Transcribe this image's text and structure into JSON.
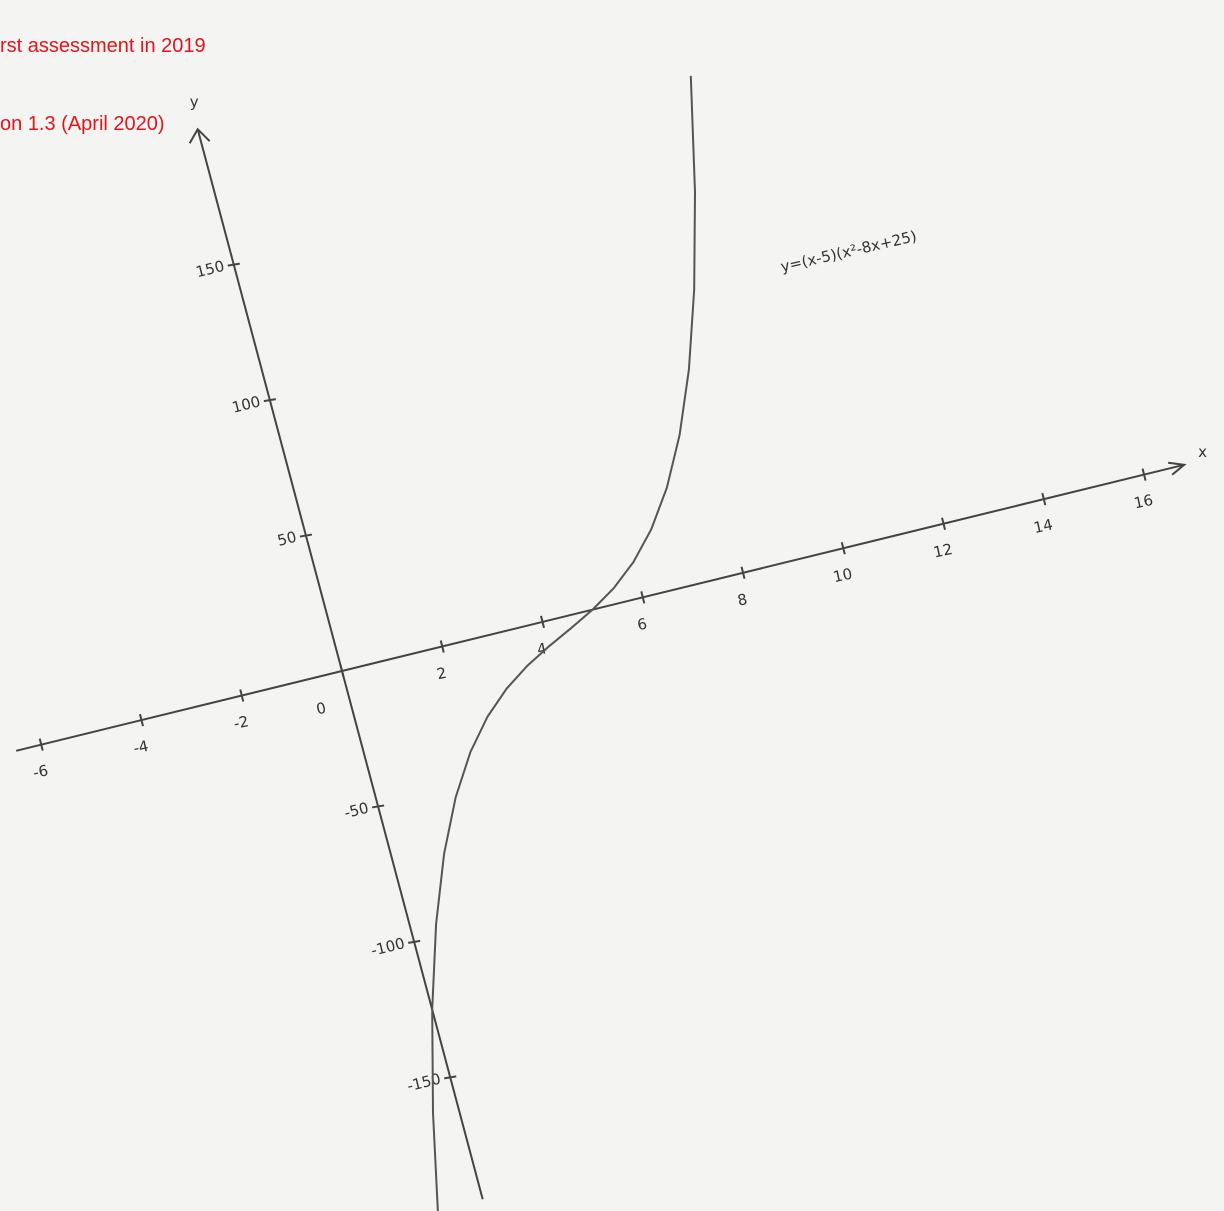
{
  "header": {
    "line1": "rst assessment in 2019",
    "line2": "on 1.3 (April 2020)"
  },
  "chart_data": {
    "type": "line",
    "equation": "y=(x-5)(x²-8x+25)",
    "xlabel": "x",
    "ylabel": "y",
    "x": [
      -1,
      -0.5,
      0,
      0.5,
      1,
      1.5,
      2,
      2.5,
      3,
      3.5,
      4,
      4.5,
      5,
      5.5,
      6,
      6.5,
      7,
      7.5,
      8,
      8.5,
      9,
      9.5
    ],
    "values": [
      -204,
      -160.875,
      -125,
      -95.625,
      -72,
      -53.375,
      -39,
      -28.125,
      -20,
      -13.875,
      -9,
      -4.625,
      0,
      5.625,
      13,
      22.875,
      36,
      53.125,
      75,
      102.375,
      136,
      176.625
    ],
    "color": "#555555",
    "xlim": [
      -6.5,
      16.8
    ],
    "ylim": [
      -195,
      200
    ],
    "xticks": [
      -6,
      -4,
      -2,
      0,
      2,
      4,
      6,
      8,
      10,
      12,
      14,
      16
    ],
    "yticks": [
      -150,
      -100,
      -50,
      50,
      100,
      150
    ]
  }
}
